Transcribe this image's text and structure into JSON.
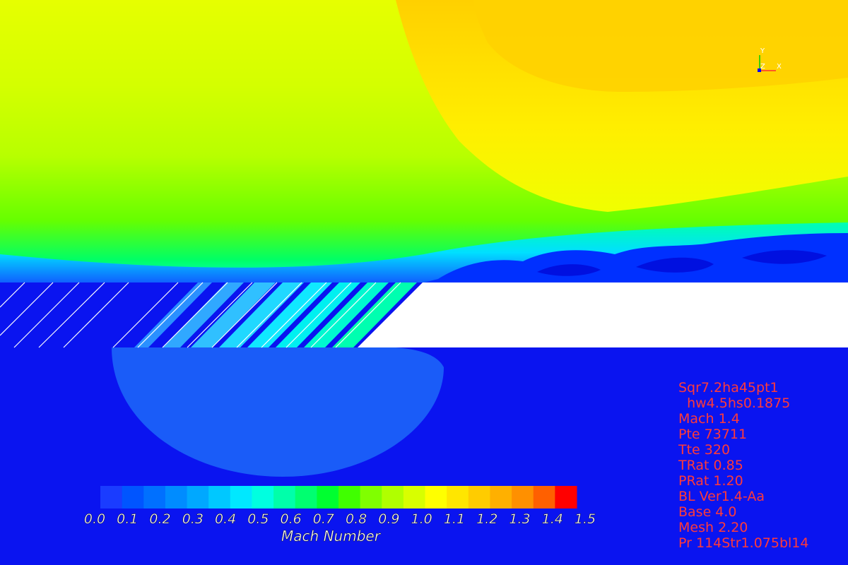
{
  "chart_data": {
    "type": "heatmap",
    "colorbar": {
      "title": "Mach Number",
      "range": [
        0.0,
        1.5
      ],
      "ticks": [
        "0.0",
        "0.1",
        "0.2",
        "0.3",
        "0.4",
        "0.5",
        "0.6",
        "0.7",
        "0.8",
        "0.9",
        "1.0",
        "1.1",
        "1.2",
        "1.3",
        "1.4",
        "1.5"
      ],
      "levels": 21
    },
    "colors": [
      "#1a3cff",
      "#0055ff",
      "#0070ff",
      "#008cff",
      "#00a8ff",
      "#00c8ff",
      "#00e8ff",
      "#00ffe0",
      "#00ffaa",
      "#00ff70",
      "#00ff30",
      "#40ff00",
      "#80ff00",
      "#b0ff00",
      "#d8ff00",
      "#ffff00",
      "#ffe600",
      "#ffcc00",
      "#ffb000",
      "#ff9000",
      "#ff6000",
      "#ff0000"
    ],
    "orientation_axes": {
      "y": "Y",
      "z": "Z",
      "x": "X"
    }
  },
  "info": [
    "Sqr7.2ha45pt1",
    "  hw4.5hs0.1875",
    "Mach 1.4",
    "Pte 73711",
    "Tte 320",
    "TRat 0.85",
    "PRat 1.20",
    "BL Ver1.4-Aa",
    "Base 4.0",
    "Mesh 2.20",
    "Pr 114Str1.075bl14"
  ]
}
